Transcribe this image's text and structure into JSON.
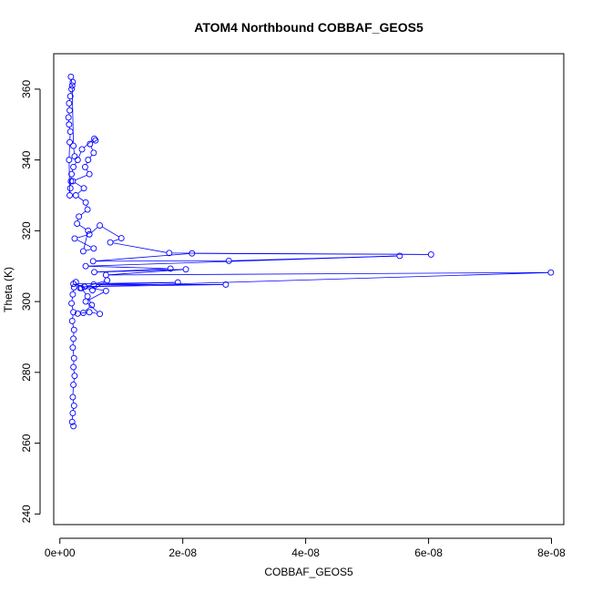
{
  "chart_data": {
    "type": "line",
    "title": "ATOM4 Northbound COBBAF_GEOS5",
    "xlabel": "COBBAF_GEOS5",
    "ylabel": "Theta (K)",
    "xlim": [
      -1e-09,
      8.2e-08
    ],
    "ylim": [
      237,
      370
    ],
    "x_ticks": [
      0,
      2e-08,
      4e-08,
      6e-08,
      8e-08
    ],
    "x_tick_labels": [
      "0e+00",
      "2e-08",
      "4e-08",
      "6e-08",
      "8e-08"
    ],
    "y_ticks": [
      240,
      260,
      280,
      300,
      320,
      340,
      360
    ],
    "y_tick_labels": [
      "240",
      "260",
      "280",
      "300",
      "320",
      "340",
      "360"
    ],
    "grid": false,
    "legend": "none",
    "series": [
      {
        "color": "#0000ff",
        "marker": "open-circle",
        "x": [
          2.2e-09,
          2e-09,
          2.1e-09,
          2.3e-09,
          2.1e-09,
          2.2e-09,
          2.4e-09,
          2.2e-09,
          2.3e-09,
          2.1e-09,
          2.2e-09,
          2.3e-09,
          2e-09,
          2.2e-09,
          1.9e-09,
          2.1e-09,
          2.3e-09,
          2.6e-09,
          3.5e-09,
          4.5e-09,
          5.2e-09,
          3.8e-09,
          2.9e-09,
          4.8e-09,
          6.5e-09,
          4.2e-09,
          7.5e-09,
          4e-09,
          3.3e-09,
          7.7e-09,
          5.3e-09,
          2.2e-09,
          1.92e-08,
          5.5e-09,
          2.7e-08,
          4e-09,
          7.99e-08,
          7.5e-09,
          2.05e-08,
          5.6e-09,
          1.8e-08,
          4.2e-09,
          5.53e-08,
          2.75e-08,
          5.4e-09,
          2.15e-08,
          6.04e-08,
          1.78e-08,
          8.2e-09,
          1e-08,
          6.5e-09,
          4.8e-09,
          2.4e-09,
          5.5e-09,
          3.8e-09,
          4.6e-09,
          2.8e-09,
          3.1e-09,
          4.5e-09,
          4.2e-09,
          2.6e-09,
          3.9e-09,
          2.1e-09,
          4.8e-09,
          4.1e-09,
          4.6e-09,
          5.5e-09,
          4.9e-09,
          5.8e-09,
          5.6e-09,
          3.6e-09,
          2.9e-09,
          2.2e-09,
          1.9e-09,
          1.8e-09,
          1.7e-09,
          1.6e-09,
          1.5e-09,
          1.6e-09,
          1.7e-09,
          1.5e-09,
          1.4e-09,
          1.6e-09,
          1.5e-09,
          1.7e-09,
          1.9e-09,
          2.1e-09,
          1.8e-09,
          2e-09,
          2.2e-09,
          2.4e-09
        ],
        "y": [
          264.8,
          266,
          268.5,
          270.6,
          273,
          276.5,
          279,
          281.5,
          284,
          287,
          289.5,
          292,
          294.5,
          297,
          299.5,
          302,
          304,
          305.5,
          303.8,
          301.5,
          299,
          296.8,
          296.6,
          297,
          296.5,
          300,
          303,
          304.2,
          303.8,
          306,
          303.2,
          305,
          305.4,
          304.8,
          304.8,
          304.2,
          308.2,
          307.5,
          309.1,
          308.3,
          309.3,
          310,
          312.9,
          311.5,
          311.4,
          313.6,
          313.3,
          313.7,
          316.7,
          317.9,
          321.5,
          319,
          317.8,
          315,
          314.2,
          320,
          322,
          324,
          326,
          328,
          330,
          332,
          334,
          336,
          338,
          340,
          342,
          344.5,
          345.5,
          346,
          343,
          340,
          338,
          336,
          334,
          332,
          330,
          340,
          345,
          348,
          350,
          352,
          354,
          356,
          358,
          360,
          362,
          363.5,
          361,
          344,
          341
        ]
      }
    ]
  }
}
